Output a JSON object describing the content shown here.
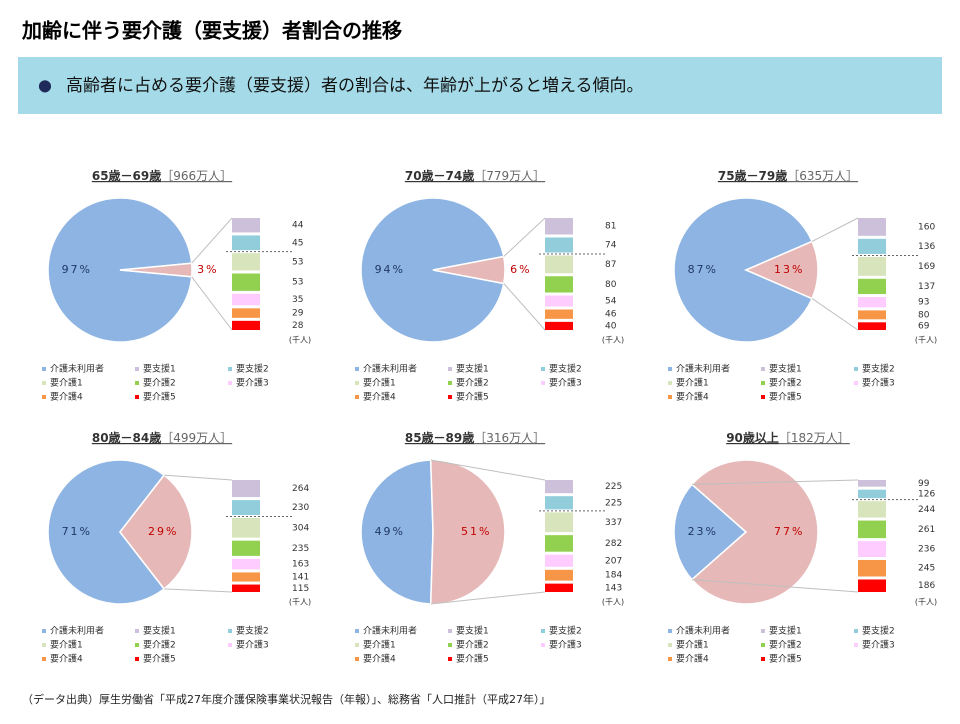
{
  "title": "加齢に伴う要介護（要支援）者割合の推移",
  "banner": {
    "bullet": "●",
    "text": "高齢者に占める要介護（要支援）者の割合は、年齢が上がると増える傾向。"
  },
  "source": "（データ出典）厚生労働省「平成27年度介護保険事業状況報告（年報）」、総務省「人口推計（平成27年）」",
  "chart_data": [
    {
      "type": "pie",
      "title": "65歳－69歳",
      "subtitle": "［966万人］",
      "values": [
        97,
        3
      ],
      "value_labels": [
        "97%",
        "3%"
      ],
      "colors": [
        "#8eb4e3",
        "#e6b9b8"
      ],
      "breakdown": {
        "values": [
          44,
          45,
          53,
          53,
          35,
          29,
          28
        ],
        "colors": [
          "#ccc0da",
          "#92cddc",
          "#d7e4bc",
          "#92d050",
          "#ffccff",
          "#f79646",
          "#ff0000"
        ],
        "unit": "(千人)"
      },
      "legend": [
        "介護未利用者",
        "要支援1",
        "要支援2",
        "要介護1",
        "要介護2",
        "要介護3",
        "要介護4",
        "要介護5"
      ]
    },
    {
      "type": "pie",
      "title": "70歳－74歳",
      "subtitle": "［779万人］",
      "values": [
        94,
        6
      ],
      "value_labels": [
        "94%",
        "6%"
      ],
      "colors": [
        "#8eb4e3",
        "#e6b9b8"
      ],
      "breakdown": {
        "values": [
          81,
          74,
          87,
          80,
          54,
          46,
          40
        ],
        "colors": [
          "#ccc0da",
          "#92cddc",
          "#d7e4bc",
          "#92d050",
          "#ffccff",
          "#f79646",
          "#ff0000"
        ],
        "unit": "(千人)"
      },
      "legend": [
        "介護未利用者",
        "要支援1",
        "要支援2",
        "要介護1",
        "要介護2",
        "要介護3",
        "要介護4",
        "要介護5"
      ]
    },
    {
      "type": "pie",
      "title": "75歳－79歳",
      "subtitle": "［635万人］",
      "values": [
        87,
        13
      ],
      "value_labels": [
        "87%",
        "13%"
      ],
      "colors": [
        "#8eb4e3",
        "#e6b9b8"
      ],
      "breakdown": {
        "values": [
          160,
          136,
          169,
          137,
          93,
          80,
          69
        ],
        "colors": [
          "#ccc0da",
          "#92cddc",
          "#d7e4bc",
          "#92d050",
          "#ffccff",
          "#f79646",
          "#ff0000"
        ],
        "unit": "(千人)"
      },
      "legend": [
        "介護未利用者",
        "要支援1",
        "要支援2",
        "要介護1",
        "要介護2",
        "要介護3",
        "要介護4",
        "要介護5"
      ]
    },
    {
      "type": "pie",
      "title": "80歳－84歳",
      "subtitle": "［499万人］",
      "values": [
        71,
        29
      ],
      "value_labels": [
        "71%",
        "29%"
      ],
      "colors": [
        "#8eb4e3",
        "#e6b9b8"
      ],
      "breakdown": {
        "values": [
          264,
          230,
          304,
          235,
          163,
          141,
          115
        ],
        "colors": [
          "#ccc0da",
          "#92cddc",
          "#d7e4bc",
          "#92d050",
          "#ffccff",
          "#f79646",
          "#ff0000"
        ],
        "unit": "(千人)"
      },
      "legend": [
        "介護未利用者",
        "要支援1",
        "要支援2",
        "要介護1",
        "要介護2",
        "要介護3",
        "要介護4",
        "要介護5"
      ]
    },
    {
      "type": "pie",
      "title": "85歳－89歳",
      "subtitle": "［316万人］",
      "values": [
        49,
        51
      ],
      "value_labels": [
        "49%",
        "51%"
      ],
      "colors": [
        "#8eb4e3",
        "#e6b9b8"
      ],
      "breakdown": {
        "values": [
          225,
          225,
          337,
          282,
          207,
          184,
          143
        ],
        "colors": [
          "#ccc0da",
          "#92cddc",
          "#d7e4bc",
          "#92d050",
          "#ffccff",
          "#f79646",
          "#ff0000"
        ],
        "unit": "(千人)"
      },
      "legend": [
        "介護未利用者",
        "要支援1",
        "要支援2",
        "要介護1",
        "要介護2",
        "要介護3",
        "要介護4",
        "要介護5"
      ]
    },
    {
      "type": "pie",
      "title": "90歳以上",
      "subtitle": "［182万人］",
      "values": [
        23,
        77
      ],
      "value_labels": [
        "23%",
        "77%"
      ],
      "colors": [
        "#8eb4e3",
        "#e6b9b8"
      ],
      "breakdown": {
        "values": [
          99,
          126,
          244,
          261,
          236,
          245,
          186
        ],
        "colors": [
          "#ccc0da",
          "#92cddc",
          "#d7e4bc",
          "#92d050",
          "#ffccff",
          "#f79646",
          "#ff0000"
        ],
        "unit": "(千人)"
      },
      "legend": [
        "介護未利用者",
        "要支援1",
        "要支援2",
        "要介護1",
        "要介護2",
        "要介護3",
        "要介護4",
        "要介護5"
      ]
    }
  ]
}
